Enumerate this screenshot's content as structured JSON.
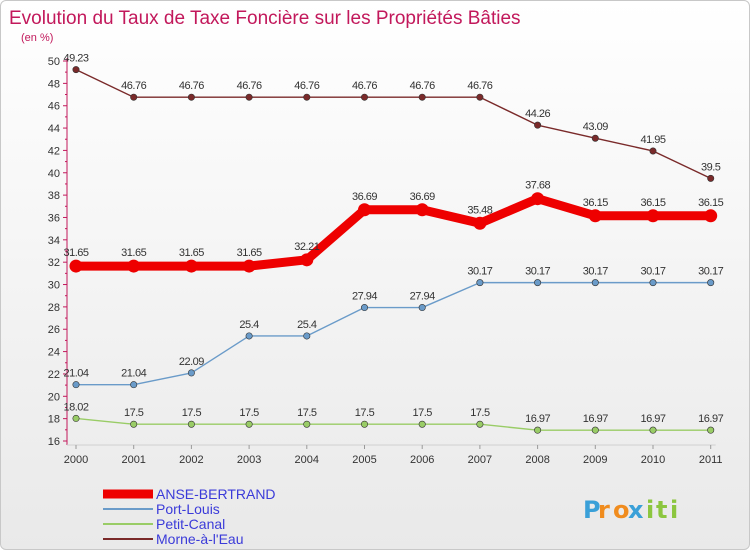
{
  "chart_data": {
    "type": "line",
    "title": "Evolution du Taux de Taxe Foncière sur les Propriétés Bâties",
    "subtitle": "(en %)",
    "categories": [
      "2000",
      "2001",
      "2002",
      "2003",
      "2004",
      "2005",
      "2006",
      "2007",
      "2008",
      "2009",
      "2010",
      "2011"
    ],
    "ylim": [
      16,
      50
    ],
    "ytick_step": 2,
    "grid": false,
    "legend_position": "bottom-left",
    "series": [
      {
        "name": "ANSE-BERTRAND",
        "color": "#ee0000",
        "values": [
          31.65,
          31.65,
          31.65,
          31.65,
          32.21,
          36.69,
          36.69,
          35.48,
          37.68,
          36.15,
          36.15,
          36.15
        ],
        "labels": [
          "31.65",
          "31.65",
          "31.65",
          "31.65",
          "32.21",
          "36.69",
          "36.69",
          "35.48",
          "37.68",
          "36.15",
          "36.15",
          "36.15"
        ]
      },
      {
        "name": "Port-Louis",
        "color": "#6a9bc9",
        "values": [
          21.04,
          21.04,
          22.09,
          25.4,
          25.4,
          27.94,
          27.94,
          30.17,
          30.17,
          30.17,
          30.17,
          30.17
        ],
        "labels": [
          "21.04",
          "21.04",
          "22.09",
          "25.4",
          "25.4",
          "27.94",
          "27.94",
          "30.17",
          "30.17",
          "30.17",
          "30.17",
          "30.17"
        ]
      },
      {
        "name": "Petit-Canal",
        "color": "#99cc66",
        "values": [
          18.02,
          17.5,
          17.5,
          17.5,
          17.5,
          17.5,
          17.5,
          17.5,
          16.97,
          16.97,
          16.97,
          16.97
        ],
        "labels": [
          "18.02",
          "17.5",
          "17.5",
          "17.5",
          "17.5",
          "17.5",
          "17.5",
          "17.5",
          "16.97",
          "16.97",
          "16.97",
          "16.97"
        ]
      },
      {
        "name": "Morne-à-l'Eau",
        "color": "#7a2a2a",
        "values": [
          49.23,
          46.76,
          46.76,
          46.76,
          46.76,
          46.76,
          46.76,
          46.76,
          44.26,
          43.09,
          41.95,
          39.5
        ],
        "labels": [
          "49.23",
          "46.76",
          "46.76",
          "46.76",
          "46.76",
          "46.76",
          "46.76",
          "46.76",
          "44.26",
          "43.09",
          "41.95",
          "39.5"
        ]
      }
    ]
  },
  "logo": {
    "letters": [
      "P",
      "r",
      "o",
      "x",
      "i",
      "t",
      "i"
    ],
    "colors": [
      "#3aa0d8",
      "#f08c1e",
      "#f08c1e",
      "#3aa0d8",
      "#8cc63f",
      "#8cc63f",
      "#8cc63f"
    ]
  }
}
